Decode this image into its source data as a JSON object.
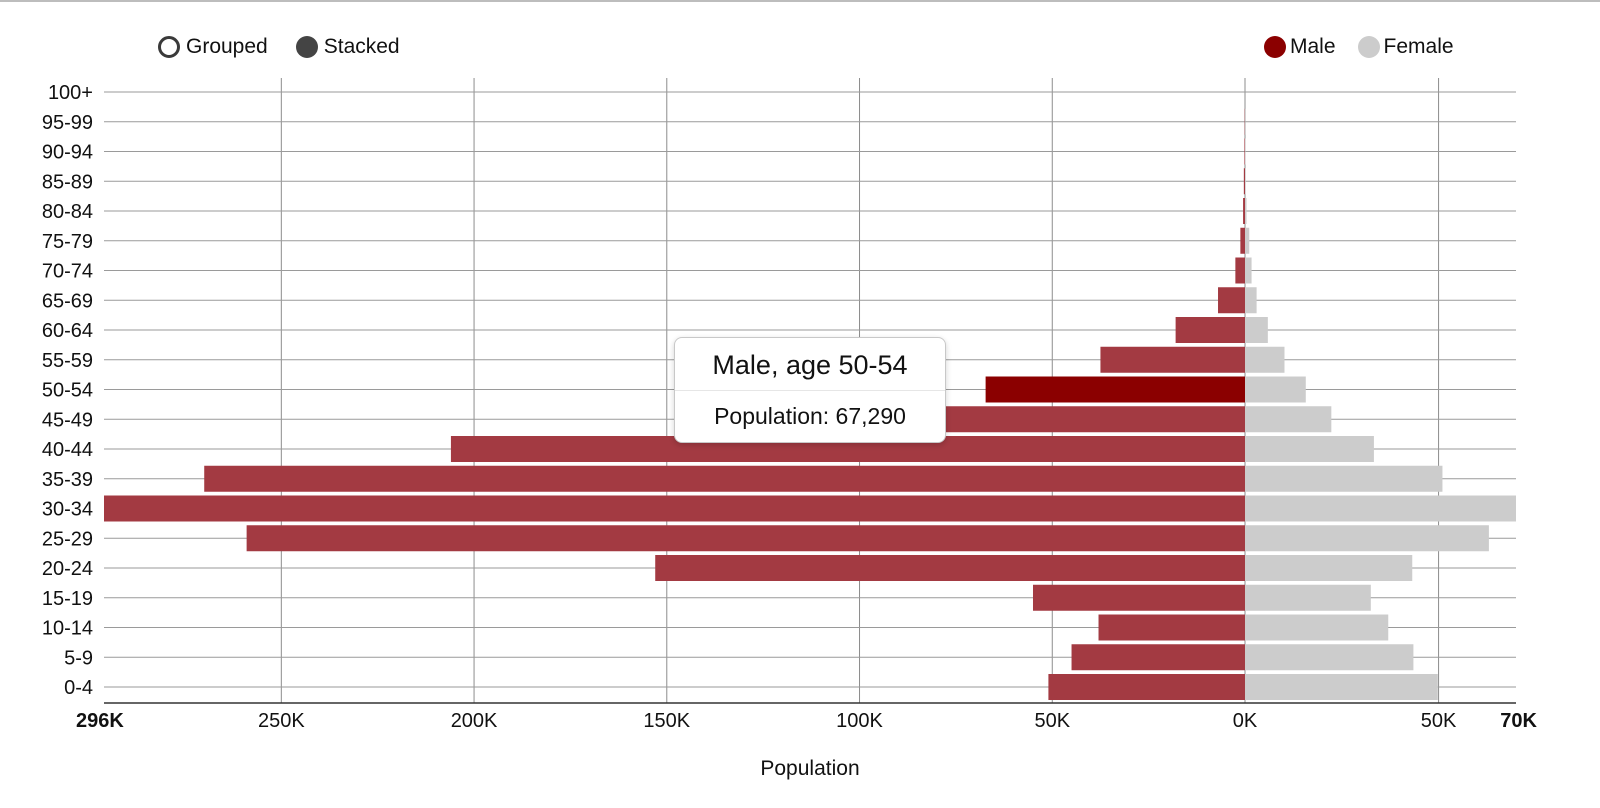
{
  "controls": {
    "grouped_label": "Grouped",
    "stacked_label": "Stacked",
    "selected": "stacked"
  },
  "legend": [
    {
      "name": "Male",
      "color": "#8b0000"
    },
    {
      "name": "Female",
      "color": "#cccccc"
    }
  ],
  "tooltip": {
    "title": "Male, age 50-54",
    "body": "Population: 67,290"
  },
  "chart_data": {
    "type": "bar",
    "orientation": "horizontal",
    "xlabel": "Population",
    "male_axis": {
      "max": 296000,
      "ticks": [
        {
          "value": 296000,
          "label": "296K",
          "bold": true
        },
        {
          "value": 250000,
          "label": "250K"
        },
        {
          "value": 200000,
          "label": "200K"
        },
        {
          "value": 150000,
          "label": "150K"
        },
        {
          "value": 100000,
          "label": "100K"
        },
        {
          "value": 50000,
          "label": "50K"
        },
        {
          "value": 0,
          "label": "0K"
        }
      ]
    },
    "female_axis": {
      "max": 70000,
      "ticks": [
        {
          "value": 50000,
          "label": "50K"
        },
        {
          "value": 70000,
          "label": "70K",
          "bold": true
        }
      ]
    },
    "categories": [
      "0-4",
      "5-9",
      "10-14",
      "15-19",
      "20-24",
      "25-29",
      "30-34",
      "35-39",
      "40-44",
      "45-49",
      "50-54",
      "55-59",
      "60-64",
      "65-69",
      "70-74",
      "75-79",
      "80-84",
      "85-89",
      "90-94",
      "95-99",
      "100+"
    ],
    "series": [
      {
        "name": "Male",
        "color": "#a33a42",
        "highlight_color": "#8b0000",
        "values": [
          51000,
          45000,
          38000,
          55000,
          153000,
          259000,
          296000,
          270000,
          206000,
          78000,
          67290,
          37500,
          18000,
          7000,
          2500,
          1200,
          500,
          300,
          150,
          80,
          0
        ]
      },
      {
        "name": "Female",
        "color": "#cccccc",
        "values": [
          49800,
          43500,
          37000,
          32500,
          43200,
          63000,
          70000,
          51000,
          33300,
          22300,
          15700,
          10200,
          5900,
          3000,
          1700,
          1100,
          400,
          200,
          100,
          50,
          0
        ]
      }
    ],
    "highlighted": {
      "series": "Male",
      "category": "50-54"
    },
    "grid": true
  }
}
